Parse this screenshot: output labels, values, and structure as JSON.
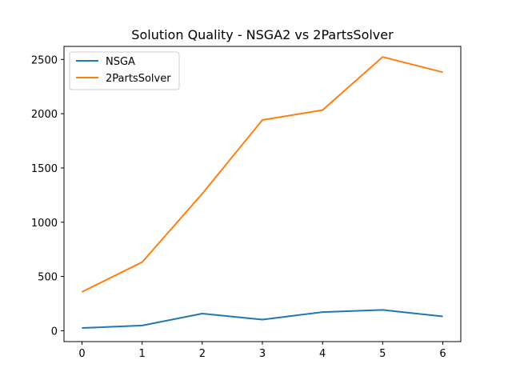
{
  "chart_data": {
    "type": "line",
    "title": "Solution Quality - NSGA2 vs 2PartsSolver",
    "xlabel": "",
    "ylabel": "",
    "x": [
      0,
      1,
      2,
      3,
      4,
      5,
      6
    ],
    "xlim": [
      -0.3,
      6.3
    ],
    "ylim": [
      -100,
      2620
    ],
    "xticks": [
      0,
      1,
      2,
      3,
      4,
      5,
      6
    ],
    "yticks": [
      0,
      500,
      1000,
      1500,
      2000,
      2500
    ],
    "grid": false,
    "legend_position": "top-left",
    "series": [
      {
        "name": "NSGA",
        "color": "#1f77b4",
        "values": [
          25,
          48,
          158,
          103,
          172,
          192,
          132
        ]
      },
      {
        "name": "2PartsSolver",
        "color": "#ff7f0e",
        "values": [
          358,
          632,
          1262,
          1942,
          2033,
          2523,
          2382
        ]
      }
    ]
  }
}
